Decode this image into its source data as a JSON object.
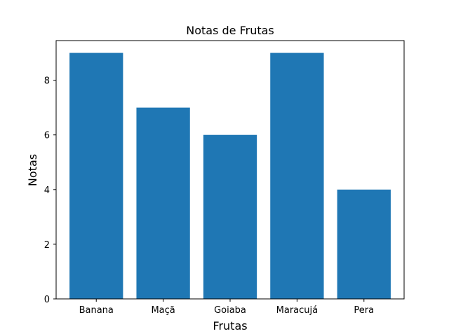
{
  "chart_data": {
    "type": "bar",
    "title": "Notas de Frutas",
    "xlabel": "Frutas",
    "ylabel": "Notas",
    "categories": [
      "Banana",
      "Maçã",
      "Goiaba",
      "Maracujá",
      "Pera"
    ],
    "values": [
      9,
      7,
      6,
      9,
      4
    ],
    "ylim": [
      0,
      9.45
    ],
    "yticks": [
      0,
      2,
      4,
      6,
      8
    ],
    "grid": false,
    "bar_color": "#1f77b4"
  }
}
